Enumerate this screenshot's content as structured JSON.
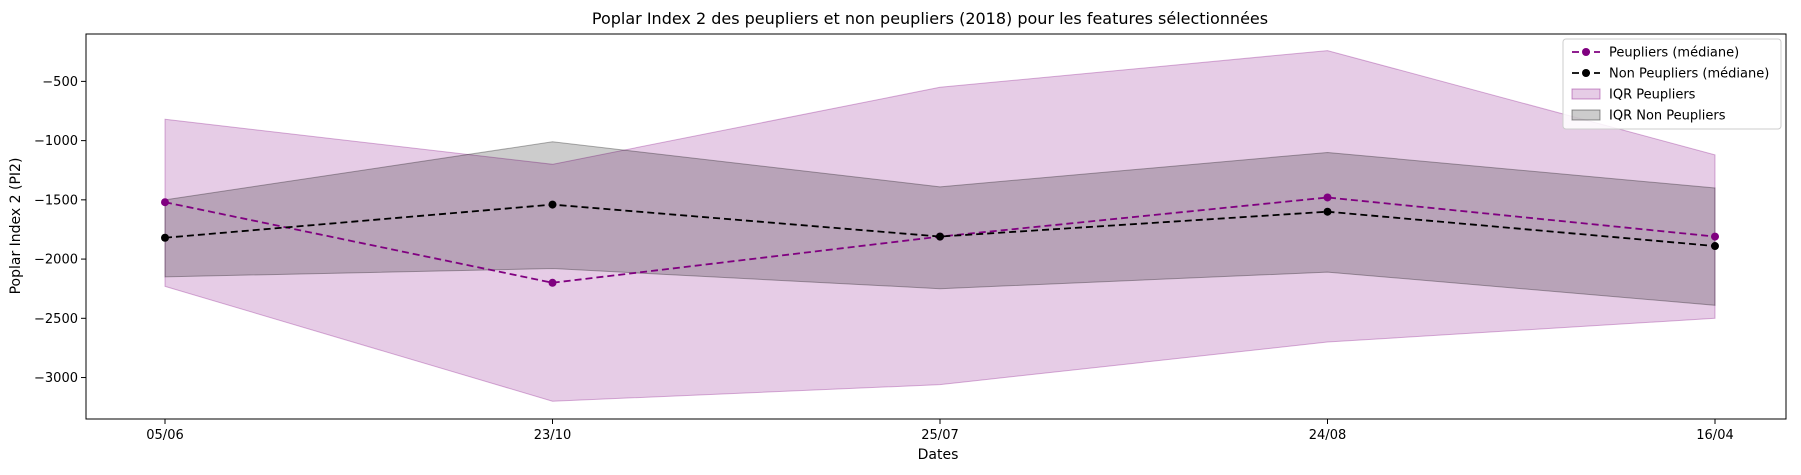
{
  "chart_data": {
    "type": "line",
    "title": "Poplar Index 2 des peupliers et non peupliers (2018) pour les features sélectionnées",
    "xlabel": "Dates",
    "ylabel": "Poplar Index 2 (PI2)",
    "categories": [
      "05/06",
      "23/10",
      "25/07",
      "24/08",
      "16/04"
    ],
    "ylim": [
      -3350,
      -100
    ],
    "yticks": [
      -3000,
      -2500,
      -2000,
      -1500,
      -1000,
      -500
    ],
    "ytick_labels": [
      "−3000",
      "−2500",
      "−2000",
      "−1500",
      "−1000",
      "−500"
    ],
    "grid": false,
    "legend_position": "top-right",
    "series": [
      {
        "name": "Peupliers (médiane)",
        "values": [
          -1520,
          -2200,
          -1810,
          -1480,
          -1810
        ],
        "color": "#800080",
        "style": "dashed",
        "marker": "circle"
      },
      {
        "name": "Non Peupliers (médiane)",
        "values": [
          -1820,
          -1540,
          -1810,
          -1600,
          -1890
        ],
        "color": "#000000",
        "style": "dashed",
        "marker": "circle"
      }
    ],
    "bands": [
      {
        "name": "IQR Peupliers",
        "lower": [
          -2230,
          -3200,
          -3060,
          -2700,
          -2500
        ],
        "upper": [
          -820,
          -1200,
          -550,
          -240,
          -1120
        ],
        "color": "#800080",
        "opacity": 0.2
      },
      {
        "name": "IQR Non Peupliers",
        "lower": [
          -2150,
          -2080,
          -2250,
          -2110,
          -2390
        ],
        "upper": [
          -1500,
          -1010,
          -1390,
          -1100,
          -1400
        ],
        "color": "#000000",
        "opacity": 0.2
      }
    ]
  }
}
